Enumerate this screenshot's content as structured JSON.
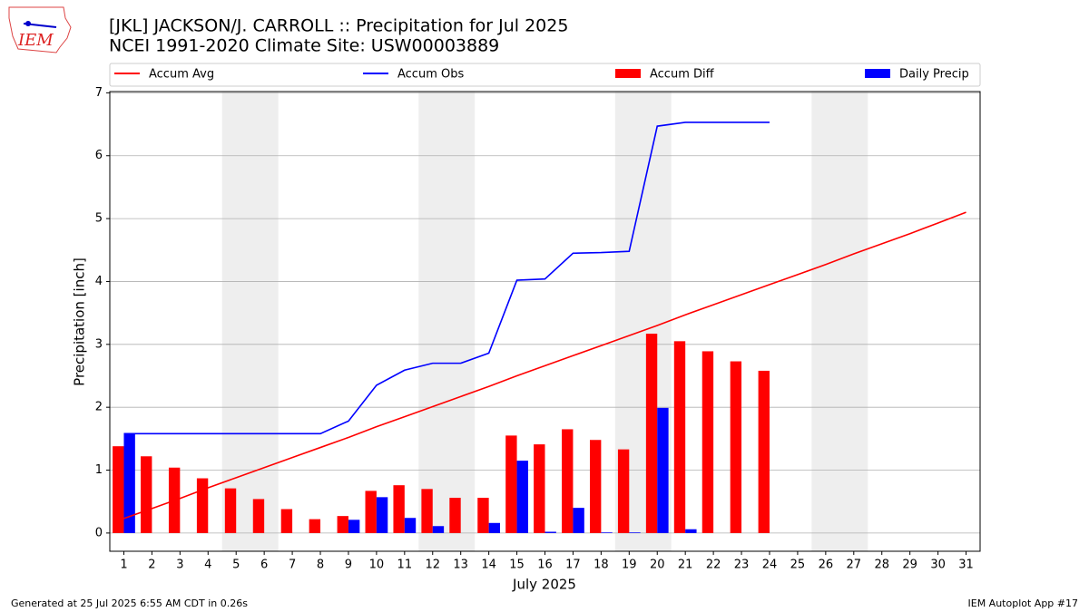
{
  "logo_text": "IEM",
  "footer_left": "Generated at 25 Jul 2025 6:55 AM CDT in 0.26s",
  "footer_right": "IEM Autoplot App #17",
  "chart_data": {
    "type": "bar",
    "title": "[JKL] JACKSON/J. CARROLL :: Precipitation for Jul 2025",
    "subtitle": "NCEI 1991-2020 Climate Site: USW00003889",
    "xlabel": "July 2025",
    "ylabel": "Precipitation [inch]",
    "x": [
      1,
      2,
      3,
      4,
      5,
      6,
      7,
      8,
      9,
      10,
      11,
      12,
      13,
      14,
      15,
      16,
      17,
      18,
      19,
      20,
      21,
      22,
      23,
      24,
      25,
      26,
      27,
      28,
      29,
      30,
      31
    ],
    "series": [
      {
        "name": "Accum Avg",
        "kind": "line",
        "color": "#ff0000",
        "values": [
          0.23,
          0.39,
          0.55,
          0.72,
          0.88,
          1.04,
          1.2,
          1.36,
          1.52,
          1.69,
          1.85,
          2.01,
          2.17,
          2.33,
          2.5,
          2.66,
          2.82,
          2.98,
          3.14,
          3.3,
          3.47,
          3.63,
          3.79,
          3.95,
          4.11,
          4.27,
          4.44,
          4.6,
          4.76,
          4.93,
          5.1
        ]
      },
      {
        "name": "Accum Obs",
        "kind": "line",
        "color": "#0000ff",
        "values": [
          1.58,
          1.58,
          1.58,
          1.58,
          1.58,
          1.58,
          1.58,
          1.58,
          1.78,
          2.35,
          2.59,
          2.7,
          2.7,
          2.86,
          4.02,
          4.04,
          4.45,
          4.46,
          4.48,
          6.47,
          6.53,
          6.53,
          6.53,
          6.53,
          null,
          null,
          null,
          null,
          null,
          null,
          null
        ]
      },
      {
        "name": "Accum Diff",
        "kind": "bar",
        "color": "#ff0000",
        "values": [
          1.38,
          1.22,
          1.04,
          0.87,
          0.71,
          0.54,
          0.38,
          0.22,
          0.27,
          0.67,
          0.76,
          0.7,
          0.56,
          0.56,
          1.55,
          1.41,
          1.65,
          1.48,
          1.33,
          3.17,
          3.05,
          2.89,
          2.73,
          2.58,
          null,
          null,
          null,
          null,
          null,
          null,
          null
        ]
      },
      {
        "name": "Daily Precip",
        "kind": "bar",
        "color": "#0000ff",
        "values": [
          1.58,
          0,
          0,
          0,
          0,
          0,
          0,
          0,
          0.21,
          0.57,
          0.24,
          0.11,
          0,
          0.16,
          1.15,
          0.02,
          0.4,
          0.01,
          0.01,
          1.99,
          0.06,
          0,
          0,
          0,
          null,
          null,
          null,
          null,
          null,
          null,
          null
        ]
      }
    ],
    "shaded_spans": [
      [
        4.5,
        6.5
      ],
      [
        11.5,
        13.5
      ],
      [
        18.5,
        20.5
      ],
      [
        25.5,
        27.5
      ]
    ],
    "xlim": [
      0.5,
      31.5
    ],
    "ylim": [
      -0.29,
      7.02
    ],
    "yticks": [
      0,
      1,
      2,
      3,
      4,
      5,
      6,
      7
    ],
    "grid": true,
    "legend": "top"
  }
}
